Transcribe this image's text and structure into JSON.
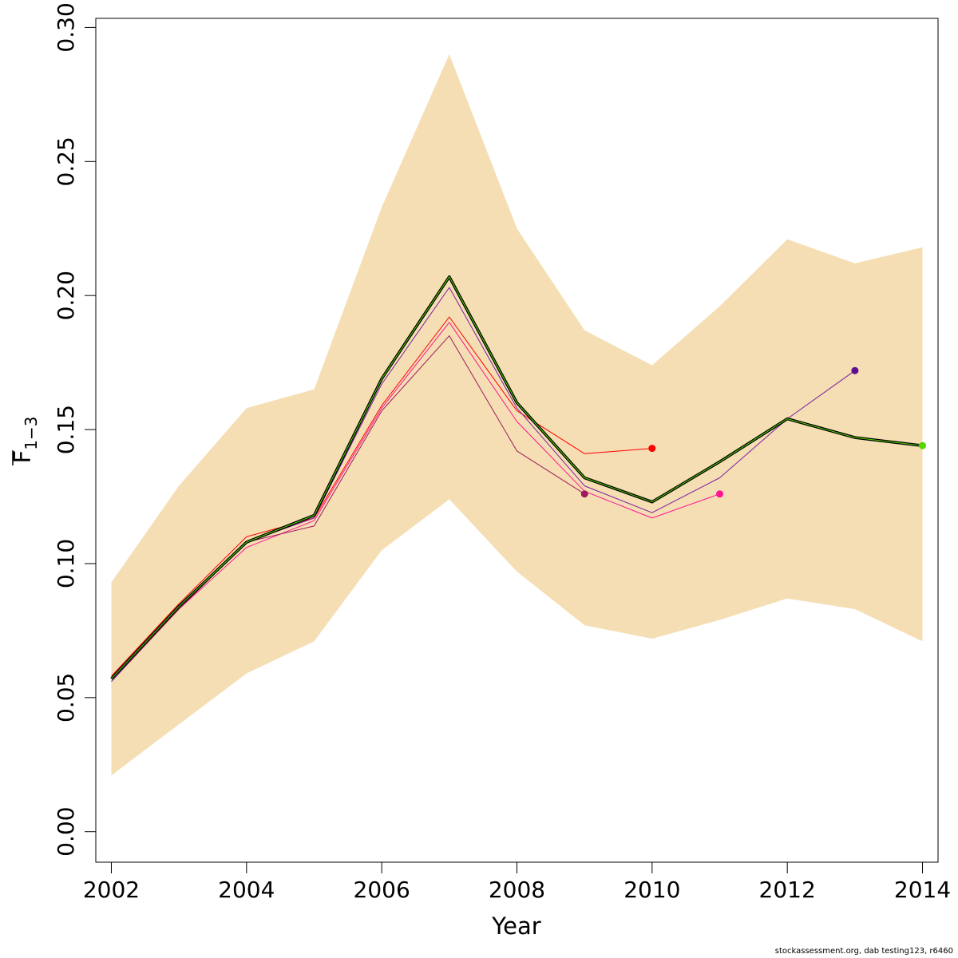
{
  "chart_data": {
    "type": "line",
    "xlabel": "Year",
    "ylabel_main": "F",
    "ylabel_subscript": "1−3",
    "xlim": [
      2001.77,
      2014.23
    ],
    "ylim": [
      -0.0114,
      0.3034
    ],
    "x_ticks": [
      2002,
      2004,
      2006,
      2008,
      2010,
      2012,
      2014
    ],
    "x_tick_labels": [
      "2002",
      "2004",
      "2006",
      "2008",
      "2010",
      "2012",
      "2014"
    ],
    "y_ticks": [
      0,
      0.05,
      0.1,
      0.15,
      0.2,
      0.25,
      0.3
    ],
    "y_tick_labels": [
      "0.00",
      "0.05",
      "0.10",
      "0.15",
      "0.20",
      "0.25",
      "0.30"
    ],
    "confidence_band": {
      "color": "#F5DEB3",
      "x": [
        2002,
        2003,
        2004,
        2005,
        2006,
        2007,
        2008,
        2009,
        2010,
        2011,
        2012,
        2013,
        2014
      ],
      "upper": [
        0.093,
        0.129,
        0.158,
        0.165,
        0.233,
        0.29,
        0.225,
        0.187,
        0.174,
        0.196,
        0.221,
        0.212,
        0.218
      ],
      "lower": [
        0.021,
        0.04,
        0.059,
        0.071,
        0.105,
        0.124,
        0.097,
        0.077,
        0.072,
        0.079,
        0.087,
        0.083,
        0.071
      ]
    },
    "series": [
      {
        "color": "#FF0000",
        "x": [
          2002,
          2003,
          2004,
          2005,
          2006,
          2007,
          2008,
          2009,
          2010
        ],
        "values": [
          0.058,
          0.085,
          0.11,
          0.117,
          0.159,
          0.192,
          0.157,
          0.141,
          0.143
        ]
      },
      {
        "color": "#FF1493",
        "x": [
          2002,
          2003,
          2004,
          2005,
          2006,
          2007,
          2008,
          2009,
          2010,
          2011
        ],
        "values": [
          0.057,
          0.083,
          0.106,
          0.116,
          0.158,
          0.19,
          0.153,
          0.127,
          0.117,
          0.126
        ]
      },
      {
        "color": "#9B1B5E",
        "x": [
          2002,
          2003,
          2004,
          2005,
          2006,
          2007,
          2008,
          2009
        ],
        "values": [
          0.056,
          0.083,
          0.108,
          0.114,
          0.157,
          0.185,
          0.142,
          0.126
        ]
      },
      {
        "color": "#7B1FA2",
        "x": [
          2002,
          2003,
          2004,
          2005,
          2006,
          2007,
          2008,
          2009,
          2010,
          2011,
          2012,
          2013
        ],
        "values": [
          0.056,
          0.084,
          0.108,
          0.117,
          0.167,
          0.203,
          0.158,
          0.129,
          0.119,
          0.132,
          0.154,
          0.172
        ]
      },
      {
        "color": "#000000",
        "width": 3.5,
        "x": [
          2002,
          2003,
          2004,
          2005,
          2006,
          2007,
          2008,
          2009,
          2010,
          2011,
          2012,
          2013,
          2014
        ],
        "values": [
          0.057,
          0.084,
          0.108,
          0.118,
          0.169,
          0.207,
          0.16,
          0.132,
          0.123,
          0.138,
          0.154,
          0.147,
          0.144
        ]
      },
      {
        "color": "#55D400",
        "x": [
          2002,
          2003,
          2004,
          2005,
          2006,
          2007,
          2008,
          2009,
          2010,
          2011,
          2012,
          2013,
          2014
        ],
        "values": [
          0.057,
          0.084,
          0.108,
          0.118,
          0.169,
          0.207,
          0.16,
          0.132,
          0.123,
          0.138,
          0.154,
          0.147,
          0.144
        ]
      }
    ],
    "end_points": [
      {
        "x": 2009,
        "y": 0.126,
        "color": "#9B1B5E"
      },
      {
        "x": 2010,
        "y": 0.143,
        "color": "#FF0000"
      },
      {
        "x": 2011,
        "y": 0.126,
        "color": "#FF1493"
      },
      {
        "x": 2013,
        "y": 0.172,
        "color": "#5E0F8F"
      },
      {
        "x": 2014,
        "y": 0.144,
        "color": "#55D400"
      }
    ]
  },
  "footer": "stockassessment.org, dab testing123, r6460"
}
